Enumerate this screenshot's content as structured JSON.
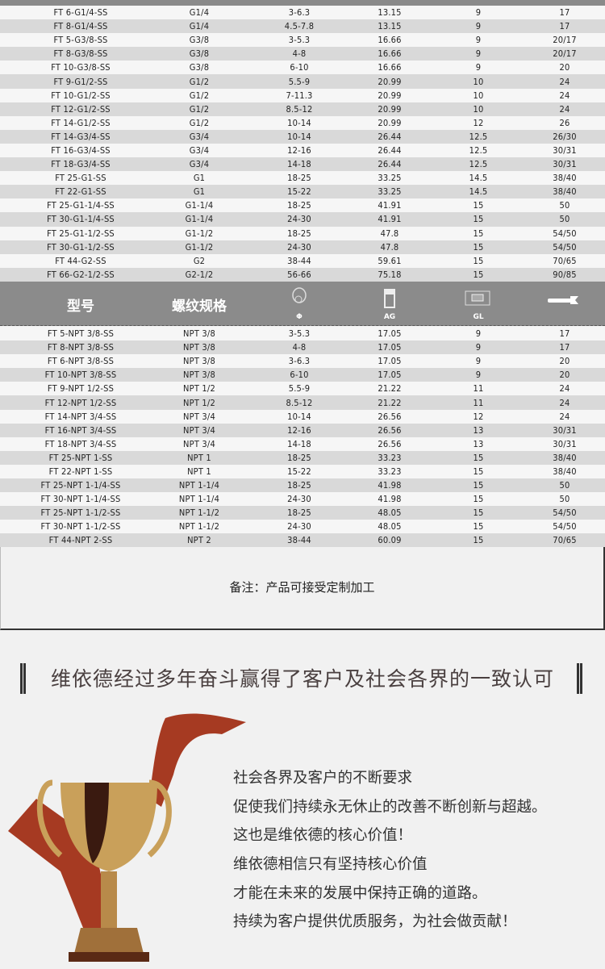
{
  "table_g": [
    [
      "FT 6-G1/4-SS",
      "G1/4",
      "3-6.3",
      "13.15",
      "9",
      "17"
    ],
    [
      "FT 8-G1/4-SS",
      "G1/4",
      "4.5-7.8",
      "13.15",
      "9",
      "17"
    ],
    [
      "FT 5-G3/8-SS",
      "G3/8",
      "3-5.3",
      "16.66",
      "9",
      "20/17"
    ],
    [
      "FT 8-G3/8-SS",
      "G3/8",
      "4-8",
      "16.66",
      "9",
      "20/17"
    ],
    [
      "FT 10-G3/8-SS",
      "G3/8",
      "6-10",
      "16.66",
      "9",
      "20"
    ],
    [
      "FT 9-G1/2-SS",
      "G1/2",
      "5.5-9",
      "20.99",
      "10",
      "24"
    ],
    [
      "FT 10-G1/2-SS",
      "G1/2",
      "7-11.3",
      "20.99",
      "10",
      "24"
    ],
    [
      "FT 12-G1/2-SS",
      "G1/2",
      "8.5-12",
      "20.99",
      "10",
      "24"
    ],
    [
      "FT 14-G1/2-SS",
      "G1/2",
      "10-14",
      "20.99",
      "12",
      "26"
    ],
    [
      "FT 14-G3/4-SS",
      "G3/4",
      "10-14",
      "26.44",
      "12.5",
      "26/30"
    ],
    [
      "FT 16-G3/4-SS",
      "G3/4",
      "12-16",
      "26.44",
      "12.5",
      "30/31"
    ],
    [
      "FT 18-G3/4-SS",
      "G3/4",
      "14-18",
      "26.44",
      "12.5",
      "30/31"
    ],
    [
      "FT 25-G1-SS",
      "G1",
      "18-25",
      "33.25",
      "14.5",
      "38/40"
    ],
    [
      "FT 22-G1-SS",
      "G1",
      "15-22",
      "33.25",
      "14.5",
      "38/40"
    ],
    [
      "FT 25-G1-1/4-SS",
      "G1-1/4",
      "18-25",
      "41.91",
      "15",
      "50"
    ],
    [
      "FT 30-G1-1/4-SS",
      "G1-1/4",
      "24-30",
      "41.91",
      "15",
      "50"
    ],
    [
      "FT 25-G1-1/2-SS",
      "G1-1/2",
      "18-25",
      "47.8",
      "15",
      "54/50"
    ],
    [
      "FT 30-G1-1/2-SS",
      "G1-1/2",
      "24-30",
      "47.8",
      "15",
      "54/50"
    ],
    [
      "FT 44-G2-SS",
      "G2",
      "38-44",
      "59.61",
      "15",
      "70/65"
    ],
    [
      "FT 66-G2-1/2-SS",
      "G2-1/2",
      "56-66",
      "75.18",
      "15",
      "90/85"
    ]
  ],
  "header": {
    "model": "型号",
    "thread": "螺纹规格",
    "phi": "Φ",
    "ag": "AG",
    "gl": "GL",
    "icons": [
      "fitting-diameter-icon",
      "fitting-ag-icon",
      "fitting-gl-icon",
      "wrench-icon"
    ]
  },
  "table_npt": [
    [
      "FT 5-NPT 3/8-SS",
      "NPT 3/8",
      "3-5.3",
      "17.05",
      "9",
      "17"
    ],
    [
      "FT 8-NPT 3/8-SS",
      "NPT 3/8",
      "4-8",
      "17.05",
      "9",
      "17"
    ],
    [
      "FT 6-NPT 3/8-SS",
      "NPT 3/8",
      "3-6.3",
      "17.05",
      "9",
      "20"
    ],
    [
      "FT 10-NPT 3/8-SS",
      "NPT 3/8",
      "6-10",
      "17.05",
      "9",
      "20"
    ],
    [
      "FT 9-NPT 1/2-SS",
      "NPT 1/2",
      "5.5-9",
      "21.22",
      "11",
      "24"
    ],
    [
      "FT 12-NPT 1/2-SS",
      "NPT 1/2",
      "8.5-12",
      "21.22",
      "11",
      "24"
    ],
    [
      "FT 14-NPT 3/4-SS",
      "NPT 3/4",
      "10-14",
      "26.56",
      "12",
      "24"
    ],
    [
      "FT 16-NPT 3/4-SS",
      "NPT 3/4",
      "12-16",
      "26.56",
      "13",
      "30/31"
    ],
    [
      "FT 18-NPT 3/4-SS",
      "NPT 3/4",
      "14-18",
      "26.56",
      "13",
      "30/31"
    ],
    [
      "FT 25-NPT  1-SS",
      "NPT 1",
      "18-25",
      "33.23",
      "15",
      "38/40"
    ],
    [
      "FT 22-NPT  1-SS",
      "NPT 1",
      "15-22",
      "33.23",
      "15",
      "38/40"
    ],
    [
      "FT 25-NPT 1-1/4-SS",
      "NPT 1-1/4",
      "18-25",
      "41.98",
      "15",
      "50"
    ],
    [
      "FT 30-NPT 1-1/4-SS",
      "NPT 1-1/4",
      "24-30",
      "41.98",
      "15",
      "50"
    ],
    [
      "FT 25-NPT 1-1/2-SS",
      "NPT 1-1/2",
      "18-25",
      "48.05",
      "15",
      "54/50"
    ],
    [
      "FT 30-NPT 1-1/2-SS",
      "NPT 1-1/2",
      "24-30",
      "48.05",
      "15",
      "54/50"
    ],
    [
      "FT 44-NPT 2-SS",
      "NPT 2",
      "38-44",
      "60.09",
      "15",
      "70/65"
    ]
  ],
  "note": "备注：产品可接受定制加工",
  "slogan": "维依德经过多年奋斗赢得了客户及社会各界的一致认可",
  "lines": [
    "社会各界及客户的不断要求",
    "促使我们持续永无休止的改善不断创新与超越。",
    "这也是维依德的核心价值！",
    "维依德相信只有坚持核心价值",
    "才能在未来的发展中保持正确的道路。",
    "持续为客户提供优质服务，为社会做贡献！"
  ],
  "colors": {
    "header_bg": "#8b8b8b",
    "row_light": "#f6f6f6",
    "row_dark": "#d9d9d9",
    "ribbon": "#a63a22",
    "gold": "#c9a05a"
  }
}
